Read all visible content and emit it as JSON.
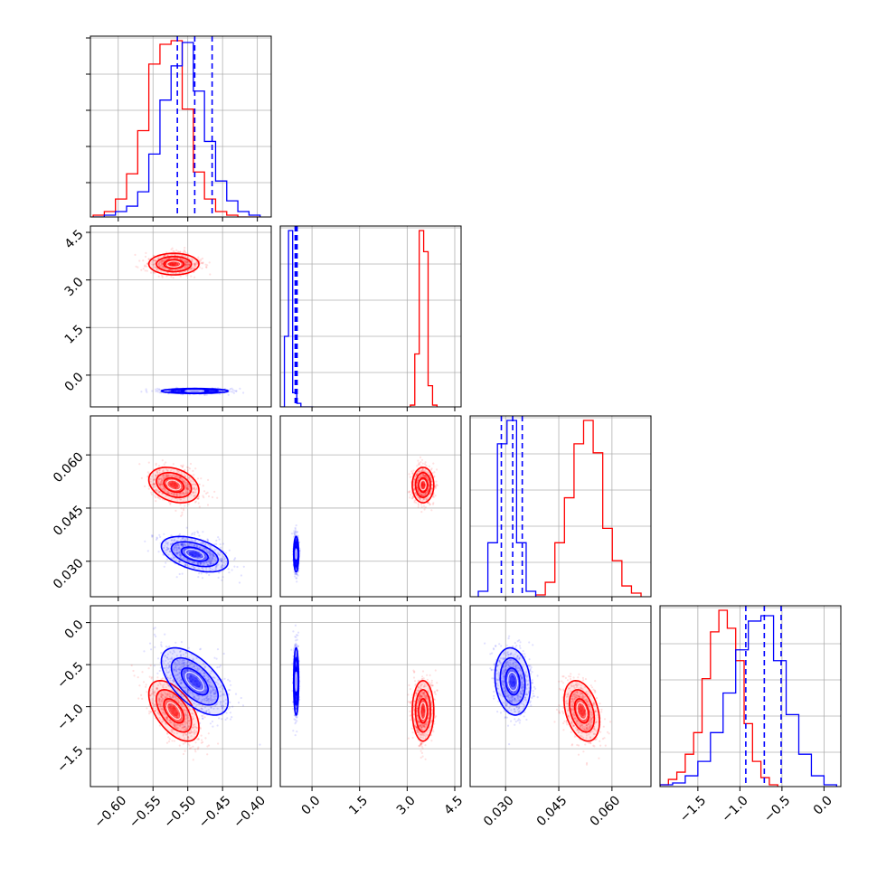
{
  "chart_data": {
    "type": "corner",
    "parameters": 4,
    "colors": {
      "run_a": "#ff0000",
      "run_b": "#0000ff"
    },
    "grid": true,
    "axes": [
      {
        "range": [
          -0.64,
          -0.38
        ],
        "ticks": [
          -0.6,
          -0.55,
          -0.5,
          -0.45,
          -0.4
        ],
        "tick_labels": [
          "−0.60",
          "−0.55",
          "−0.50",
          "−0.45",
          "−0.40"
        ]
      },
      {
        "range": [
          -1.0,
          4.7
        ],
        "ticks": [
          0.0,
          1.5,
          3.0,
          4.5
        ],
        "tick_labels": [
          "0.0",
          "1.5",
          "3.0",
          "4.5"
        ]
      },
      {
        "range": [
          0.02,
          0.071
        ],
        "ticks": [
          0.03,
          0.045,
          0.06
        ],
        "tick_labels": [
          "0.030",
          "0.045",
          "0.060"
        ]
      },
      {
        "range": [
          -1.95,
          0.2
        ],
        "ticks": [
          -1.5,
          -1.0,
          -0.5,
          0.0
        ],
        "tick_labels": [
          "−1.5",
          "−1.0",
          "−0.5",
          "0.0"
        ]
      }
    ],
    "series": [
      {
        "color": "#ff0000",
        "mean": [
          -0.52,
          3.5,
          0.0515,
          -1.05
        ],
        "std": [
          0.018,
          0.17,
          0.0025,
          0.18
        ],
        "corr": [
          [
            0,
            1,
            0
          ],
          [
            0,
            2,
            -0.3
          ],
          [
            0,
            3,
            -0.55
          ],
          [
            2,
            3,
            -0.35
          ]
        ],
        "hist_bins": [
          [
            -0.636,
            -0.62,
            -0.604,
            -0.588,
            -0.572,
            -0.556,
            -0.54,
            -0.524,
            -0.508,
            -0.492,
            -0.476,
            -0.46,
            -0.444,
            -0.428,
            -0.412,
            -0.396
          ],
          [
            3.1,
            3.24,
            3.38,
            3.52,
            3.66,
            3.8,
            3.94
          ],
          [
            0.0385,
            0.0412,
            0.0439,
            0.0466,
            0.0493,
            0.052,
            0.0547,
            0.0574,
            0.0601,
            0.0628,
            0.0655,
            0.0682
          ],
          [
            -1.95,
            -1.85,
            -1.75,
            -1.65,
            -1.55,
            -1.45,
            -1.35,
            -1.25,
            -1.15,
            -1.05,
            -0.95,
            -0.85,
            -0.75,
            -0.65,
            -0.55
          ]
        ],
        "hist_counts": [
          [
            1,
            3,
            10,
            24,
            48,
            85,
            96,
            98,
            60,
            25,
            10,
            3,
            1,
            0,
            0
          ],
          [
            1,
            30,
            100,
            88,
            12,
            1
          ],
          [
            1,
            8,
            30,
            55,
            85,
            98,
            80,
            38,
            20,
            6,
            2
          ],
          [
            1,
            4,
            8,
            18,
            30,
            60,
            86,
            98,
            88,
            70,
            35,
            14,
            5,
            1
          ]
        ]
      },
      {
        "color": "#0000ff",
        "mean": [
          -0.49,
          -0.5,
          0.032,
          -0.7
        ],
        "std": [
          0.024,
          0.04,
          0.0025,
          0.2
        ],
        "corr": [
          [
            0,
            1,
            0
          ],
          [
            0,
            2,
            -0.45
          ],
          [
            0,
            3,
            -0.6
          ],
          [
            1,
            3,
            0
          ],
          [
            2,
            3,
            -0.15
          ]
        ],
        "hist_bins": [
          [
            -0.636,
            -0.62,
            -0.604,
            -0.588,
            -0.572,
            -0.556,
            -0.54,
            -0.524,
            -0.508,
            -0.492,
            -0.476,
            -0.46,
            -0.444,
            -0.428,
            -0.412,
            -0.396
          ],
          [
            -1.0,
            -0.87,
            -0.74,
            -0.61,
            -0.48,
            -0.35,
            -0.22,
            -0.09,
            0.04
          ],
          [
            0.0223,
            0.025,
            0.0277,
            0.0304,
            0.0331,
            0.0358,
            0.0385,
            0.0412
          ],
          [
            -1.95,
            -1.8,
            -1.65,
            -1.5,
            -1.35,
            -1.2,
            -1.05,
            -0.9,
            -0.75,
            -0.6,
            -0.45,
            -0.3,
            -0.15,
            0.0,
            0.15
          ]
        ],
        "hist_counts": [
          [
            0,
            1,
            3,
            6,
            14,
            35,
            65,
            84,
            97,
            70,
            42,
            20,
            9,
            3,
            1
          ],
          [
            0,
            40,
            100,
            8,
            2,
            0,
            0,
            0
          ],
          [
            3,
            30,
            85,
            98,
            30,
            3,
            0
          ],
          [
            1,
            2,
            6,
            14,
            30,
            52,
            76,
            92,
            95,
            70,
            40,
            18,
            6,
            1
          ]
        ]
      }
    ],
    "quantile_lines": {
      "color": "#0000ff",
      "style": "dashed",
      "values": [
        [
          -0.515,
          -0.49,
          -0.465
        ],
        [
          -0.53,
          -0.5,
          -0.47
        ],
        [
          0.0288,
          0.032,
          0.0347
        ],
        [
          -0.93,
          -0.71,
          -0.51
        ]
      ]
    }
  }
}
